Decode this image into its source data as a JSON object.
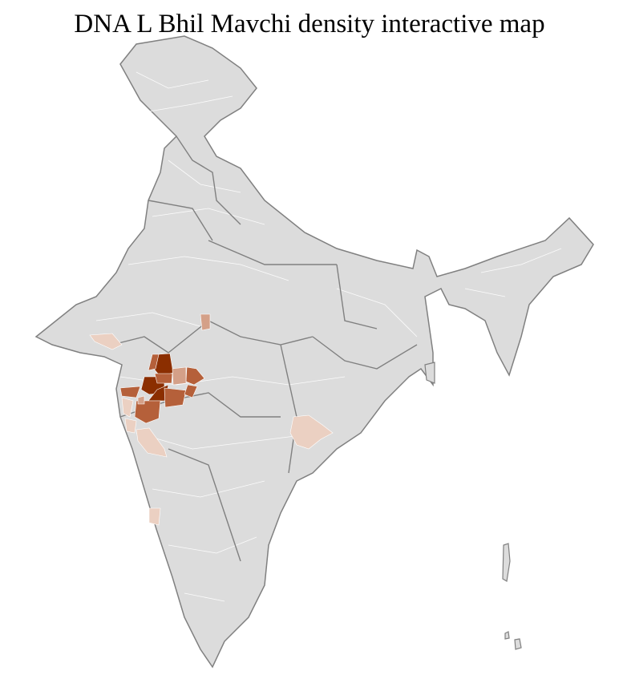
{
  "title": "DNA L Bhil Mavchi density interactive map",
  "colors": {
    "background_region": "#dcdcdc",
    "district_border": "#ffffff",
    "state_border": "#808080",
    "density_very_high": "#8b2e00",
    "density_high": "#b5603a",
    "density_medium": "#d4a088",
    "density_low": "#ebd0c2"
  }
}
